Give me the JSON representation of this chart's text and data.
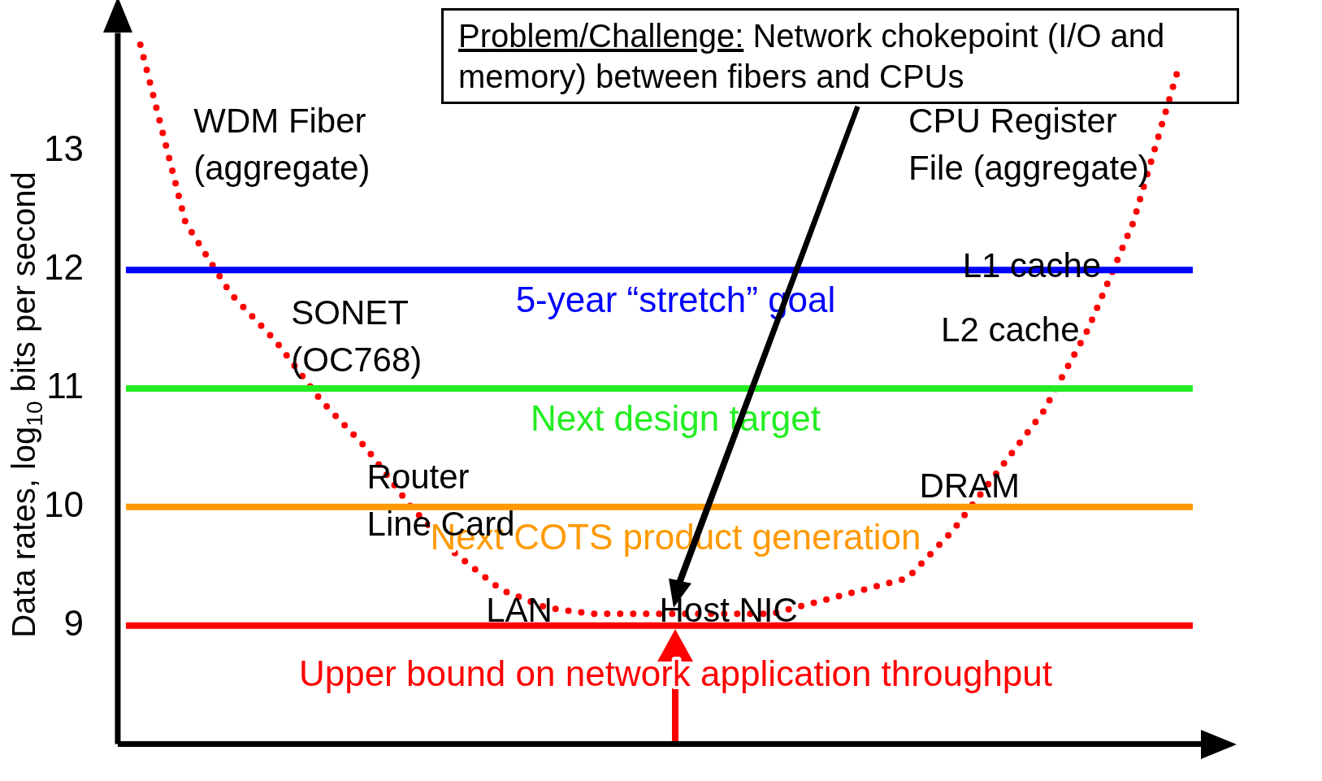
{
  "chart_data": {
    "type": "line",
    "ylabel": "Data rates, log$_{10}$ bits per second",
    "categories": [
      null,
      null,
      null,
      null,
      null,
      null,
      null,
      null,
      null,
      null,
      null,
      null,
      null,
      null,
      null,
      null,
      null,
      null,
      null,
      null,
      null,
      null,
      null,
      null
    ],
    "series": [
      {
        "color": "#ff0000",
        "values": [
          13.9,
          12.4,
          11.8,
          11.4,
          10.9,
          10.5,
          10.0,
          9.6,
          9.3,
          9.15,
          9.1,
          9.1,
          9.1,
          9.1,
          9.1,
          9.2,
          9.3,
          9.4,
          9.8,
          10.3,
          10.8,
          11.5,
          12.4,
          13.7
        ]
      }
    ],
    "ylim": [
      8,
      14
    ],
    "yticks": [
      9,
      10,
      11,
      12,
      13
    ],
    "grid": false,
    "legend": false,
    "tick_labels": "y",
    "marker": "none",
    "line_style": "dotted",
    "ref_lines": [
      {
        "axis": "y",
        "value": 12,
        "label": "5-year “stretch” goal",
        "color": "#0000ff"
      },
      {
        "axis": "y",
        "value": 11,
        "label": "Next design target",
        "color": "#22ee22"
      },
      {
        "axis": "y",
        "value": 10,
        "label": "Next COTS product generation",
        "color": "#ff9900"
      },
      {
        "axis": "y",
        "value": 9,
        "label": "Upper bound on network application throughput",
        "color": "#ff0000"
      }
    ],
    "annotations": [
      "Problem/Challenge: Network chokepoint (I/O and memory) between fibers and CPUs",
      "WDM Fiber\n(aggregate)",
      "SONET\n(OC768)",
      "Router\nLine Card",
      "LAN",
      "Host NIC",
      "DRAM",
      "L2 cache",
      "L1 cache",
      "CPU Register\nFile (aggregate)"
    ]
  }
}
